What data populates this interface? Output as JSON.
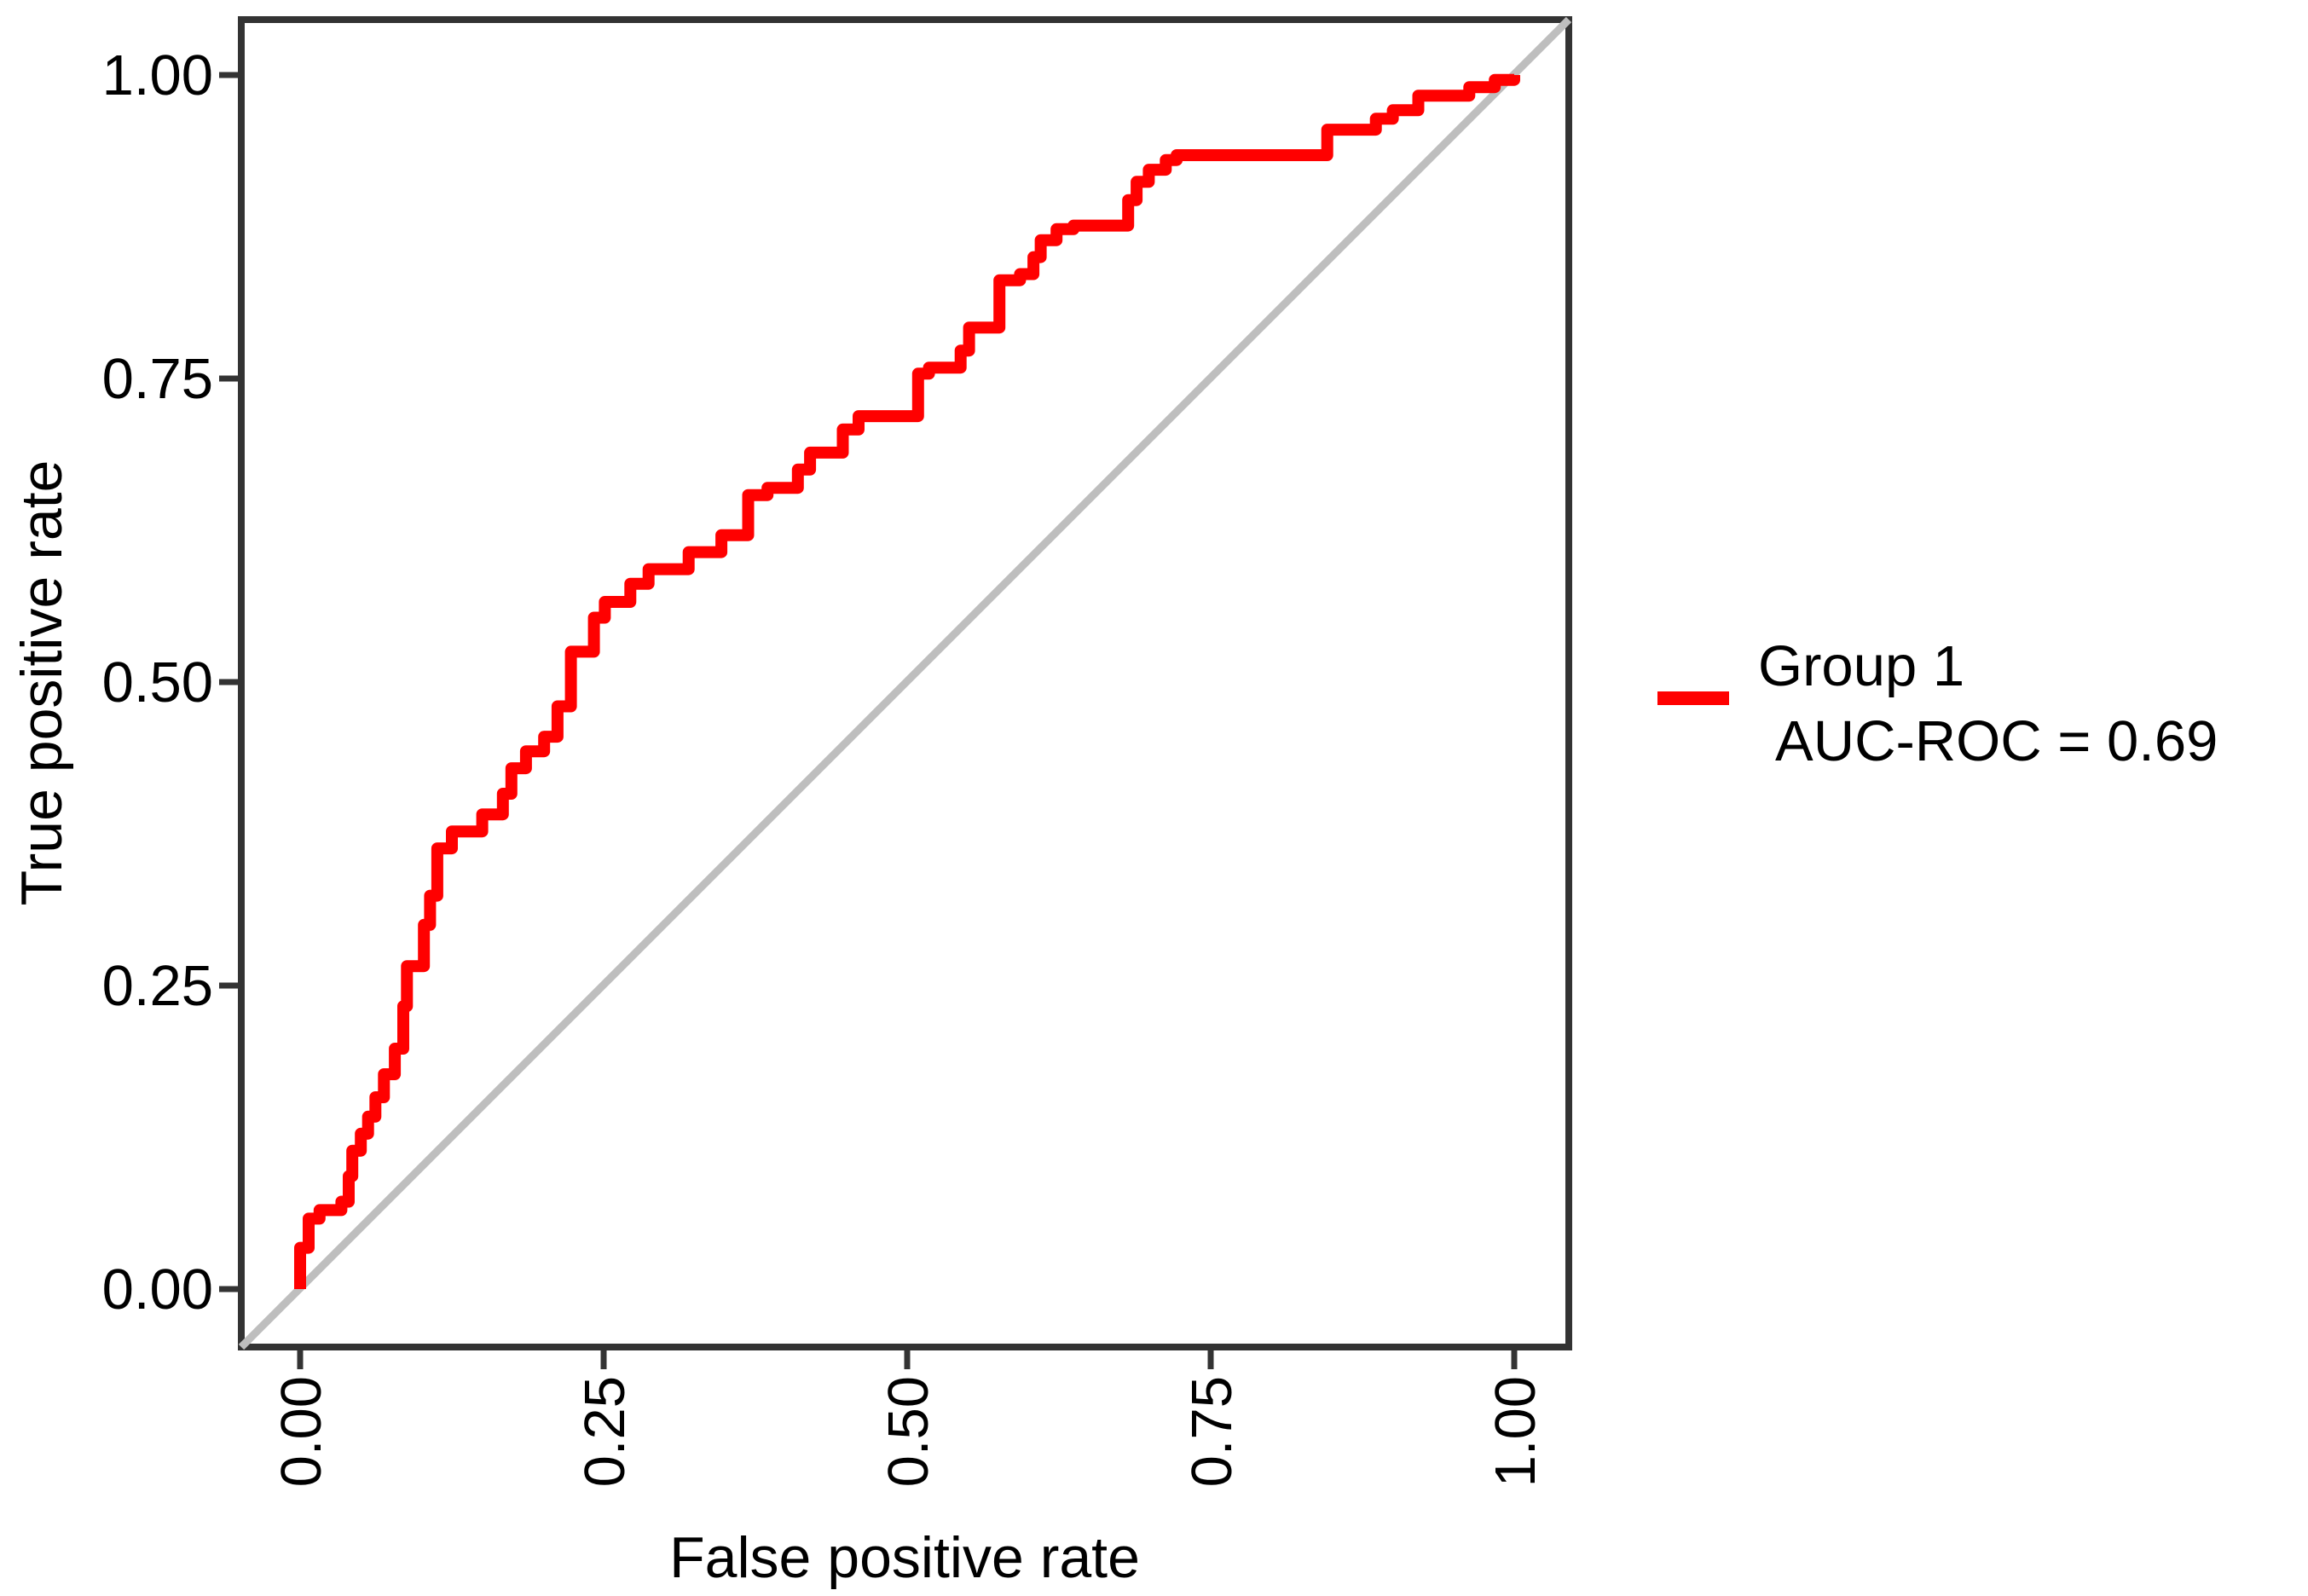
{
  "chart_data": {
    "type": "line",
    "subtype": "roc-curve",
    "title": "",
    "xlabel": "False positive rate",
    "ylabel": "True positive rate",
    "xlim": [
      0,
      1
    ],
    "ylim": [
      0,
      1
    ],
    "grid": false,
    "legend_position": "right",
    "x_ticks": {
      "values": [
        0,
        0.25,
        0.5,
        0.75,
        1
      ],
      "labels": [
        "0.00",
        "0.25",
        "0.50",
        "0.75",
        "1.00"
      ],
      "rotation": 90
    },
    "y_ticks": {
      "values": [
        1,
        0.75,
        0.5,
        0.25,
        0
      ],
      "labels": [
        "1.00",
        "0.75",
        "0.50",
        "0.25",
        "0.00"
      ],
      "rotation": 0
    },
    "reference_line": {
      "type": "diagonal",
      "from": [
        0,
        0
      ],
      "to": [
        1,
        1
      ],
      "color": "#BEBEBE"
    },
    "series": [
      {
        "name": "Group 1",
        "auc_roc": 0.69,
        "color": "#FF0000",
        "points": [
          [
            0,
            0
          ],
          [
            0,
            0.034
          ],
          [
            0.007,
            0.034
          ],
          [
            0.007,
            0.058
          ],
          [
            0.016,
            0.058
          ],
          [
            0.016,
            0.065
          ],
          [
            0.034,
            0.065
          ],
          [
            0.034,
            0.072
          ],
          [
            0.04,
            0.072
          ],
          [
            0.04,
            0.093
          ],
          [
            0.043,
            0.093
          ],
          [
            0.043,
            0.114
          ],
          [
            0.05,
            0.114
          ],
          [
            0.05,
            0.128
          ],
          [
            0.056,
            0.128
          ],
          [
            0.056,
            0.142
          ],
          [
            0.062,
            0.142
          ],
          [
            0.062,
            0.158
          ],
          [
            0.069,
            0.158
          ],
          [
            0.069,
            0.177
          ],
          [
            0.078,
            0.177
          ],
          [
            0.078,
            0.198
          ],
          [
            0.085,
            0.198
          ],
          [
            0.085,
            0.233
          ],
          [
            0.088,
            0.233
          ],
          [
            0.088,
            0.266
          ],
          [
            0.102,
            0.266
          ],
          [
            0.102,
            0.3
          ],
          [
            0.107,
            0.3
          ],
          [
            0.107,
            0.324
          ],
          [
            0.113,
            0.324
          ],
          [
            0.113,
            0.363
          ],
          [
            0.125,
            0.363
          ],
          [
            0.125,
            0.377
          ],
          [
            0.15,
            0.377
          ],
          [
            0.15,
            0.391
          ],
          [
            0.167,
            0.391
          ],
          [
            0.167,
            0.408
          ],
          [
            0.174,
            0.408
          ],
          [
            0.174,
            0.429
          ],
          [
            0.186,
            0.429
          ],
          [
            0.186,
            0.443
          ],
          [
            0.201,
            0.443
          ],
          [
            0.201,
            0.455
          ],
          [
            0.212,
            0.455
          ],
          [
            0.212,
            0.48
          ],
          [
            0.223,
            0.48
          ],
          [
            0.223,
            0.525
          ],
          [
            0.242,
            0.525
          ],
          [
            0.242,
            0.553
          ],
          [
            0.251,
            0.553
          ],
          [
            0.251,
            0.566
          ],
          [
            0.272,
            0.566
          ],
          [
            0.272,
            0.581
          ],
          [
            0.287,
            0.581
          ],
          [
            0.287,
            0.593
          ],
          [
            0.32,
            0.593
          ],
          [
            0.32,
            0.607
          ],
          [
            0.347,
            0.607
          ],
          [
            0.347,
            0.621
          ],
          [
            0.369,
            0.621
          ],
          [
            0.369,
            0.654
          ],
          [
            0.385,
            0.654
          ],
          [
            0.385,
            0.66
          ],
          [
            0.41,
            0.66
          ],
          [
            0.41,
            0.675
          ],
          [
            0.42,
            0.675
          ],
          [
            0.42,
            0.689
          ],
          [
            0.447,
            0.689
          ],
          [
            0.447,
            0.708
          ],
          [
            0.46,
            0.708
          ],
          [
            0.46,
            0.719
          ],
          [
            0.509,
            0.719
          ],
          [
            0.509,
            0.754
          ],
          [
            0.518,
            0.754
          ],
          [
            0.518,
            0.759
          ],
          [
            0.544,
            0.759
          ],
          [
            0.544,
            0.773
          ],
          [
            0.551,
            0.773
          ],
          [
            0.551,
            0.792
          ],
          [
            0.576,
            0.792
          ],
          [
            0.576,
            0.831
          ],
          [
            0.593,
            0.831
          ],
          [
            0.593,
            0.836
          ],
          [
            0.604,
            0.836
          ],
          [
            0.604,
            0.85
          ],
          [
            0.61,
            0.85
          ],
          [
            0.61,
            0.864
          ],
          [
            0.623,
            0.864
          ],
          [
            0.623,
            0.873
          ],
          [
            0.637,
            0.873
          ],
          [
            0.637,
            0.876
          ],
          [
            0.682,
            0.876
          ],
          [
            0.682,
            0.897
          ],
          [
            0.689,
            0.897
          ],
          [
            0.689,
            0.912
          ],
          [
            0.699,
            0.912
          ],
          [
            0.699,
            0.922
          ],
          [
            0.713,
            0.922
          ],
          [
            0.713,
            0.93
          ],
          [
            0.722,
            0.93
          ],
          [
            0.722,
            0.934
          ],
          [
            0.846,
            0.934
          ],
          [
            0.846,
            0.955
          ],
          [
            0.886,
            0.955
          ],
          [
            0.886,
            0.964
          ],
          [
            0.9,
            0.964
          ],
          [
            0.9,
            0.971
          ],
          [
            0.921,
            0.971
          ],
          [
            0.921,
            0.983
          ],
          [
            0.963,
            0.983
          ],
          [
            0.963,
            0.99
          ],
          [
            0.984,
            0.99
          ],
          [
            0.984,
            0.996
          ],
          [
            1,
            0.996
          ],
          [
            1,
            1
          ]
        ]
      }
    ]
  },
  "legend": {
    "items": [
      {
        "swatch_color": "#FF0000",
        "label_line1": "Group 1",
        "label_line2": "AUC-ROC = 0.69"
      }
    ]
  },
  "colors": {
    "curve": "#FF0000",
    "diagonal": "#BEBEBE",
    "panel_border": "#333333",
    "tick": "#333333",
    "text": "#000000",
    "background": "#FFFFFF"
  }
}
